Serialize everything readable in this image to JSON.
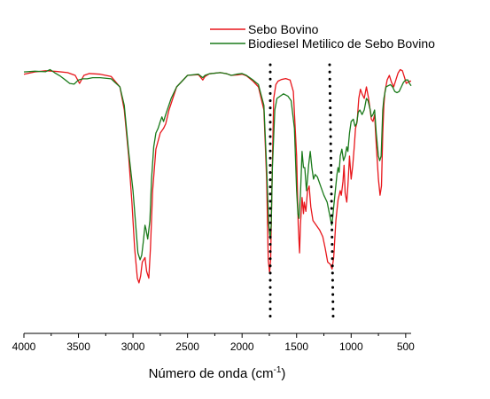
{
  "chart_data": {
    "type": "line",
    "xlabel": "Número de onda (cm",
    "xlabel_sup": "-1",
    "xlabel_close": ")",
    "ylabel": "",
    "xlim": [
      4000,
      450
    ],
    "x_reversed": true,
    "ylim": [
      0,
      1
    ],
    "x_ticks": [
      4000,
      3500,
      3000,
      2500,
      2000,
      1500,
      1000,
      500
    ],
    "grid": false,
    "legend_position": "top-right",
    "series": [
      {
        "name": "Sebo Bovino",
        "color": "#e8161b",
        "points": [
          [
            4000,
            0.955
          ],
          [
            3900,
            0.965
          ],
          [
            3800,
            0.97
          ],
          [
            3700,
            0.967
          ],
          [
            3600,
            0.962
          ],
          [
            3530,
            0.95
          ],
          [
            3490,
            0.915
          ],
          [
            3450,
            0.95
          ],
          [
            3400,
            0.958
          ],
          [
            3300,
            0.955
          ],
          [
            3200,
            0.945
          ],
          [
            3120,
            0.9
          ],
          [
            3080,
            0.8
          ],
          [
            3040,
            0.6
          ],
          [
            3010,
            0.4
          ],
          [
            2985,
            0.2
          ],
          [
            2960,
            0.07
          ],
          [
            2945,
            0.05
          ],
          [
            2930,
            0.08
          ],
          [
            2915,
            0.14
          ],
          [
            2890,
            0.16
          ],
          [
            2875,
            0.1
          ],
          [
            2855,
            0.07
          ],
          [
            2840,
            0.2
          ],
          [
            2820,
            0.45
          ],
          [
            2790,
            0.63
          ],
          [
            2750,
            0.7
          ],
          [
            2720,
            0.72
          ],
          [
            2700,
            0.74
          ],
          [
            2670,
            0.8
          ],
          [
            2600,
            0.9
          ],
          [
            2500,
            0.95
          ],
          [
            2400,
            0.953
          ],
          [
            2360,
            0.93
          ],
          [
            2340,
            0.945
          ],
          [
            2300,
            0.957
          ],
          [
            2200,
            0.962
          ],
          [
            2140,
            0.957
          ],
          [
            2100,
            0.95
          ],
          [
            2040,
            0.952
          ],
          [
            2000,
            0.955
          ],
          [
            1960,
            0.948
          ],
          [
            1900,
            0.925
          ],
          [
            1850,
            0.9
          ],
          [
            1800,
            0.8
          ],
          [
            1775,
            0.5
          ],
          [
            1760,
            0.15
          ],
          [
            1748,
            0.095
          ],
          [
            1738,
            0.15
          ],
          [
            1725,
            0.5
          ],
          [
            1710,
            0.85
          ],
          [
            1690,
            0.91
          ],
          [
            1670,
            0.925
          ],
          [
            1640,
            0.932
          ],
          [
            1600,
            0.936
          ],
          [
            1560,
            0.93
          ],
          [
            1530,
            0.88
          ],
          [
            1500,
            0.6
          ],
          [
            1485,
            0.3
          ],
          [
            1473,
            0.18
          ],
          [
            1465,
            0.3
          ],
          [
            1450,
            0.42
          ],
          [
            1437,
            0.35
          ],
          [
            1430,
            0.4
          ],
          [
            1415,
            0.36
          ],
          [
            1400,
            0.45
          ],
          [
            1385,
            0.47
          ],
          [
            1370,
            0.38
          ],
          [
            1350,
            0.32
          ],
          [
            1320,
            0.3
          ],
          [
            1290,
            0.28
          ],
          [
            1260,
            0.25
          ],
          [
            1238,
            0.2
          ],
          [
            1215,
            0.14
          ],
          [
            1190,
            0.13
          ],
          [
            1175,
            0.11
          ],
          [
            1160,
            0.16
          ],
          [
            1140,
            0.32
          ],
          [
            1120,
            0.41
          ],
          [
            1100,
            0.45
          ],
          [
            1090,
            0.43
          ],
          [
            1075,
            0.49
          ],
          [
            1065,
            0.56
          ],
          [
            1055,
            0.44
          ],
          [
            1040,
            0.4
          ],
          [
            1030,
            0.47
          ],
          [
            1015,
            0.6
          ],
          [
            1000,
            0.5
          ],
          [
            985,
            0.56
          ],
          [
            970,
            0.65
          ],
          [
            960,
            0.72
          ],
          [
            945,
            0.75
          ],
          [
            930,
            0.85
          ],
          [
            915,
            0.89
          ],
          [
            900,
            0.87
          ],
          [
            880,
            0.85
          ],
          [
            860,
            0.9
          ],
          [
            840,
            0.85
          ],
          [
            815,
            0.76
          ],
          [
            800,
            0.75
          ],
          [
            785,
            0.78
          ],
          [
            770,
            0.65
          ],
          [
            750,
            0.5
          ],
          [
            735,
            0.43
          ],
          [
            722,
            0.47
          ],
          [
            710,
            0.7
          ],
          [
            700,
            0.82
          ],
          [
            690,
            0.88
          ],
          [
            670,
            0.93
          ],
          [
            650,
            0.95
          ],
          [
            630,
            0.92
          ],
          [
            610,
            0.9
          ],
          [
            590,
            0.93
          ],
          [
            570,
            0.96
          ],
          [
            550,
            0.975
          ],
          [
            530,
            0.97
          ],
          [
            510,
            0.94
          ],
          [
            495,
            0.915
          ],
          [
            480,
            0.92
          ],
          [
            460,
            0.925
          ],
          [
            450,
            0.925
          ]
        ]
      },
      {
        "name": "Biodiesel Metilico de Sebo Bovino",
        "color": "#1a7a1a",
        "points": [
          [
            4000,
            0.965
          ],
          [
            3900,
            0.968
          ],
          [
            3800,
            0.966
          ],
          [
            3760,
            0.975
          ],
          [
            3720,
            0.962
          ],
          [
            3670,
            0.948
          ],
          [
            3620,
            0.93
          ],
          [
            3580,
            0.915
          ],
          [
            3540,
            0.912
          ],
          [
            3500,
            0.93
          ],
          [
            3460,
            0.935
          ],
          [
            3420,
            0.935
          ],
          [
            3370,
            0.94
          ],
          [
            3300,
            0.94
          ],
          [
            3200,
            0.935
          ],
          [
            3120,
            0.9
          ],
          [
            3080,
            0.82
          ],
          [
            3040,
            0.62
          ],
          [
            3000,
            0.45
          ],
          [
            2975,
            0.3
          ],
          [
            2955,
            0.18
          ],
          [
            2935,
            0.15
          ],
          [
            2920,
            0.17
          ],
          [
            2905,
            0.23
          ],
          [
            2890,
            0.3
          ],
          [
            2880,
            0.28
          ],
          [
            2865,
            0.24
          ],
          [
            2845,
            0.32
          ],
          [
            2830,
            0.5
          ],
          [
            2810,
            0.64
          ],
          [
            2790,
            0.7
          ],
          [
            2770,
            0.72
          ],
          [
            2750,
            0.75
          ],
          [
            2735,
            0.77
          ],
          [
            2720,
            0.75
          ],
          [
            2700,
            0.78
          ],
          [
            2650,
            0.85
          ],
          [
            2600,
            0.9
          ],
          [
            2500,
            0.95
          ],
          [
            2400,
            0.955
          ],
          [
            2360,
            0.94
          ],
          [
            2340,
            0.95
          ],
          [
            2300,
            0.957
          ],
          [
            2200,
            0.962
          ],
          [
            2140,
            0.957
          ],
          [
            2100,
            0.95
          ],
          [
            2050,
            0.955
          ],
          [
            2000,
            0.958
          ],
          [
            1960,
            0.95
          ],
          [
            1900,
            0.93
          ],
          [
            1850,
            0.91
          ],
          [
            1800,
            0.82
          ],
          [
            1775,
            0.55
          ],
          [
            1755,
            0.3
          ],
          [
            1742,
            0.24
          ],
          [
            1733,
            0.3
          ],
          [
            1722,
            0.55
          ],
          [
            1700,
            0.8
          ],
          [
            1680,
            0.85
          ],
          [
            1650,
            0.86
          ],
          [
            1620,
            0.87
          ],
          [
            1580,
            0.86
          ],
          [
            1550,
            0.84
          ],
          [
            1520,
            0.72
          ],
          [
            1500,
            0.45
          ],
          [
            1488,
            0.35
          ],
          [
            1478,
            0.33
          ],
          [
            1465,
            0.43
          ],
          [
            1450,
            0.62
          ],
          [
            1437,
            0.55
          ],
          [
            1425,
            0.55
          ],
          [
            1410,
            0.45
          ],
          [
            1400,
            0.5
          ],
          [
            1390,
            0.56
          ],
          [
            1375,
            0.62
          ],
          [
            1360,
            0.55
          ],
          [
            1345,
            0.5
          ],
          [
            1330,
            0.52
          ],
          [
            1310,
            0.51
          ],
          [
            1280,
            0.47
          ],
          [
            1250,
            0.43
          ],
          [
            1220,
            0.4
          ],
          [
            1195,
            0.34
          ],
          [
            1178,
            0.3
          ],
          [
            1170,
            0.33
          ],
          [
            1160,
            0.38
          ],
          [
            1145,
            0.45
          ],
          [
            1130,
            0.52
          ],
          [
            1120,
            0.55
          ],
          [
            1110,
            0.53
          ],
          [
            1100,
            0.6
          ],
          [
            1085,
            0.63
          ],
          [
            1070,
            0.58
          ],
          [
            1055,
            0.6
          ],
          [
            1040,
            0.64
          ],
          [
            1030,
            0.62
          ],
          [
            1015,
            0.7
          ],
          [
            1000,
            0.75
          ],
          [
            980,
            0.76
          ],
          [
            965,
            0.73
          ],
          [
            950,
            0.74
          ],
          [
            935,
            0.79
          ],
          [
            920,
            0.8
          ],
          [
            900,
            0.78
          ],
          [
            880,
            0.8
          ],
          [
            860,
            0.85
          ],
          [
            845,
            0.84
          ],
          [
            825,
            0.8
          ],
          [
            815,
            0.77
          ],
          [
            800,
            0.78
          ],
          [
            785,
            0.8
          ],
          [
            770,
            0.7
          ],
          [
            750,
            0.6
          ],
          [
            738,
            0.58
          ],
          [
            725,
            0.6
          ],
          [
            710,
            0.8
          ],
          [
            700,
            0.85
          ],
          [
            680,
            0.9
          ],
          [
            660,
            0.905
          ],
          [
            640,
            0.91
          ],
          [
            620,
            0.9
          ],
          [
            600,
            0.88
          ],
          [
            580,
            0.875
          ],
          [
            560,
            0.88
          ],
          [
            540,
            0.9
          ],
          [
            520,
            0.92
          ],
          [
            500,
            0.93
          ],
          [
            480,
            0.93
          ],
          [
            465,
            0.915
          ],
          [
            450,
            0.905
          ]
        ]
      }
    ]
  }
}
